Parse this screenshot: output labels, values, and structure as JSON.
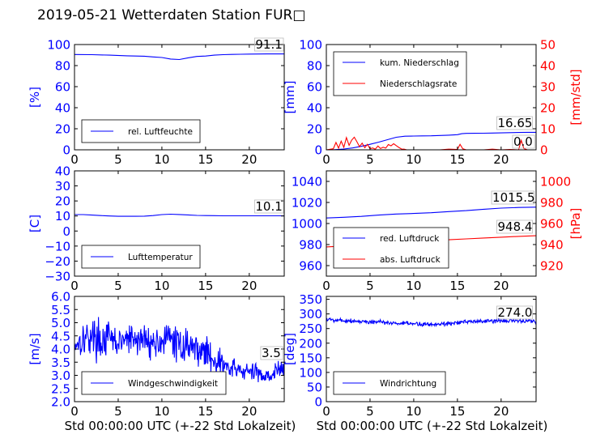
{
  "title": "2019-05-21 Wetterdaten Station FUR□",
  "xlabel": "Std 00:00:00 UTC (+-22 Std Lokalzeit)",
  "colors": {
    "blue": "#0000ff",
    "red": "#ff0000",
    "black": "#000000"
  },
  "chart_data": [
    {
      "type": "line",
      "panel": "top-left",
      "ylabel": "[%]",
      "xlim": [
        0,
        24
      ],
      "ylim": [
        0,
        100
      ],
      "xticks": [
        "0",
        "5",
        "10",
        "15",
        "20"
      ],
      "yticks": [
        "0",
        "20",
        "40",
        "60",
        "80",
        "100"
      ],
      "series": [
        {
          "name": "rel. Luftfeuchte",
          "color": "#0000ff",
          "x": [
            0,
            2,
            4,
            6,
            8,
            9,
            10,
            11,
            12,
            13,
            14,
            15,
            16,
            17,
            18,
            19,
            20,
            21,
            22,
            23,
            24
          ],
          "y": [
            90.5,
            90.4,
            89.9,
            89.3,
            88.9,
            88.2,
            87.7,
            86.2,
            85.8,
            87.4,
            88.7,
            89.1,
            89.9,
            90.4,
            90.6,
            90.8,
            90.9,
            91.0,
            91.1,
            91.1,
            91.1
          ]
        }
      ],
      "annotations": [
        {
          "text": "91.1",
          "x": 20.7,
          "y": 91.1
        }
      ],
      "legend": "lower-left"
    },
    {
      "type": "line",
      "panel": "top-right",
      "ylabel": "[mm]",
      "ylabel_right": "[mm/std]",
      "xlim": [
        0,
        24
      ],
      "ylim": [
        0,
        100
      ],
      "ylim_right": [
        0,
        50
      ],
      "xticks": [
        "0",
        "5",
        "10",
        "15",
        "20"
      ],
      "yticks": [
        "0",
        "20",
        "40",
        "60",
        "80",
        "100"
      ],
      "yticks_right": [
        "0",
        "10",
        "20",
        "30",
        "40",
        "50"
      ],
      "series": [
        {
          "name": "kum. Niederschlag",
          "color": "#0000ff",
          "axis": "left",
          "x": [
            0,
            0.8,
            2,
            3,
            4,
            5,
            6,
            7,
            8,
            9,
            10,
            11,
            12,
            13,
            14,
            15,
            15.5,
            16,
            17,
            18,
            19,
            20,
            21,
            22,
            23,
            24
          ],
          "y": [
            0,
            0.1,
            0.8,
            1.8,
            3.3,
            5.2,
            7.3,
            9.6,
            11.9,
            12.9,
            13.1,
            13.2,
            13.3,
            13.6,
            13.9,
            14.4,
            15.3,
            15.6,
            15.7,
            15.8,
            15.9,
            16.1,
            16.3,
            16.5,
            16.6,
            16.65
          ]
        },
        {
          "name": "Niederschlagsrate",
          "color": "#ff0000",
          "axis": "right",
          "x": [
            0,
            0.8,
            1.1,
            1.4,
            1.7,
            2.0,
            2.3,
            2.6,
            2.9,
            3.2,
            3.5,
            3.8,
            4.1,
            4.4,
            4.7,
            5.0,
            5.3,
            5.6,
            5.9,
            6.2,
            6.5,
            6.8,
            7.1,
            7.4,
            7.7,
            8.0,
            8.3,
            8.6,
            8.9,
            9.2,
            10,
            11,
            12,
            13,
            14,
            15,
            15.3,
            15.6,
            16,
            17,
            18,
            19,
            20,
            21,
            22,
            22.3,
            22.6,
            23,
            23.5,
            24
          ],
          "y": [
            0,
            0.5,
            3.5,
            0.8,
            4.1,
            1.2,
            5.8,
            2.1,
            4.6,
            6.0,
            3.8,
            1.5,
            3.2,
            1.0,
            2.6,
            0.5,
            0.9,
            0.3,
            1.8,
            0.6,
            1.2,
            0.8,
            2.5,
            1.9,
            2.9,
            2.0,
            1.1,
            0.4,
            0.3,
            0,
            0,
            0,
            0,
            0,
            0.3,
            0.2,
            2.6,
            0.5,
            0,
            0,
            0,
            0.3,
            0,
            0.2,
            0,
            4.5,
            0.6,
            0,
            0,
            0
          ]
        }
      ],
      "annotations": [
        {
          "text": "16.65",
          "x": 19.6,
          "y": 16.65
        },
        {
          "text": "0.0",
          "x": 21.4,
          "y": 2.8
        }
      ],
      "legend": "upper-left"
    },
    {
      "type": "line",
      "panel": "middle-left",
      "ylabel": "[C]",
      "xlim": [
        0,
        24
      ],
      "ylim": [
        -30,
        40
      ],
      "xticks": [
        "0",
        "5",
        "10",
        "15",
        "20"
      ],
      "yticks": [
        "−30",
        "−20",
        "−10",
        "0",
        "10",
        "20",
        "30",
        "40"
      ],
      "series": [
        {
          "name": "Lufttemperatur",
          "color": "#0000ff",
          "x": [
            0,
            1,
            2,
            3,
            4,
            5,
            6,
            7,
            8,
            9,
            10,
            11,
            12,
            13,
            14,
            15,
            16,
            17,
            18,
            19,
            20,
            21,
            22,
            23,
            24
          ],
          "y": [
            10.9,
            10.9,
            10.6,
            10.3,
            10.0,
            9.8,
            9.8,
            9.8,
            9.9,
            10.3,
            10.9,
            11.2,
            11.0,
            10.7,
            10.4,
            10.3,
            10.2,
            10.1,
            10.1,
            10.1,
            10.1,
            10.1,
            10.1,
            10.1,
            10.1
          ]
        }
      ],
      "annotations": [
        {
          "text": "10.1",
          "x": 20.7,
          "y": 10.1
        }
      ],
      "legend": "lower-left"
    },
    {
      "type": "line",
      "panel": "middle-right",
      "ylabel_right": "[hPa]",
      "xlim": [
        0,
        24
      ],
      "ylim": [
        950,
        1050
      ],
      "ylim_right": [
        910,
        1010
      ],
      "xticks": [
        "0",
        "5",
        "10",
        "15",
        "20"
      ],
      "yticks": [
        "960",
        "980",
        "1000",
        "1020",
        "1040"
      ],
      "yticks_right": [
        "920",
        "940",
        "960",
        "980",
        "1000"
      ],
      "series": [
        {
          "name": "red. Luftdruck",
          "color": "#0000ff",
          "axis": "left",
          "x": [
            0,
            2,
            4,
            6,
            8,
            10,
            12,
            14,
            16,
            18,
            20,
            22,
            24
          ],
          "y": [
            1005.2,
            1005.9,
            1006.8,
            1008.0,
            1009.0,
            1009.5,
            1010.2,
            1011.3,
            1012.2,
            1013.5,
            1014.6,
            1015.2,
            1015.5
          ]
        },
        {
          "name": "abs. Luftdruck",
          "color": "#ff0000",
          "axis": "right",
          "x": [
            0,
            2,
            4,
            6,
            8,
            10,
            12,
            14,
            16,
            18,
            20,
            22,
            24
          ],
          "y": [
            937.8,
            938.6,
            939.8,
            941.0,
            942.1,
            942.9,
            943.6,
            944.5,
            945.4,
            946.2,
            947.0,
            947.8,
            948.4
          ]
        }
      ],
      "annotations": [
        {
          "text": "1015.5",
          "x": 19.0,
          "y": 1015.5
        },
        {
          "text": "948.4",
          "x": 19.6,
          "y": 948.4
        }
      ],
      "legend": "lower-left"
    },
    {
      "type": "line",
      "panel": "bottom-left",
      "ylabel": "[m/s]",
      "xlim": [
        0,
        24
      ],
      "ylim": [
        2.0,
        6.0
      ],
      "xticks": [
        "0",
        "5",
        "10",
        "15",
        "20"
      ],
      "yticks": [
        "2.0",
        "2.5",
        "3.0",
        "3.5",
        "4.0",
        "4.5",
        "5.0",
        "5.5",
        "6.0"
      ],
      "series": [
        {
          "name": "Windgeschwindigkeit",
          "color": "#0000ff",
          "x": [
            0,
            1,
            2,
            3,
            4,
            5,
            6,
            7,
            8,
            9,
            10,
            11,
            12,
            13,
            14,
            15,
            16,
            17,
            18,
            19,
            20,
            21,
            22,
            23,
            24
          ],
          "y": [
            4.2,
            4.4,
            4.5,
            4.3,
            4.4,
            4.2,
            4.4,
            4.3,
            4.4,
            4.2,
            4.3,
            4.4,
            4.1,
            4.2,
            4.0,
            3.9,
            3.6,
            3.4,
            3.2,
            3.2,
            3.1,
            3.1,
            3.0,
            3.1,
            3.3
          ],
          "noise": [
            0.45,
            0.5,
            0.55,
            0.55,
            0.5,
            0.45,
            0.45,
            0.5,
            0.45,
            0.45,
            0.45,
            0.5,
            0.5,
            0.45,
            0.45,
            0.45,
            0.45,
            0.4,
            0.35,
            0.3,
            0.3,
            0.3,
            0.3,
            0.3,
            0.3
          ],
          "seed": 17
        }
      ],
      "annotations": [
        {
          "text": "3.5",
          "x": 21.4,
          "y": 3.5
        }
      ],
      "legend": "lower-left"
    },
    {
      "type": "line",
      "panel": "bottom-right",
      "ylabel": "[deg]",
      "xlim": [
        0,
        24
      ],
      "ylim": [
        0,
        360
      ],
      "xticks": [
        "0",
        "5",
        "10",
        "15",
        "20"
      ],
      "yticks": [
        "0",
        "50",
        "100",
        "150",
        "200",
        "250",
        "300",
        "350"
      ],
      "series": [
        {
          "name": "Windrichtung",
          "color": "#0000ff",
          "x": [
            0,
            2,
            4,
            6,
            8,
            10,
            12,
            14,
            16,
            18,
            20,
            22,
            24
          ],
          "y": [
            282,
            278,
            274,
            272,
            268,
            266,
            264,
            268,
            272,
            275,
            277,
            276,
            274
          ],
          "noise": [
            6,
            6,
            6,
            6,
            6,
            6,
            6,
            6,
            6,
            6,
            6,
            6,
            6
          ],
          "seed": 5
        }
      ],
      "annotations": [
        {
          "text": "274.0",
          "x": 19.6,
          "y": 274.0
        }
      ],
      "legend": "lower-left"
    }
  ]
}
